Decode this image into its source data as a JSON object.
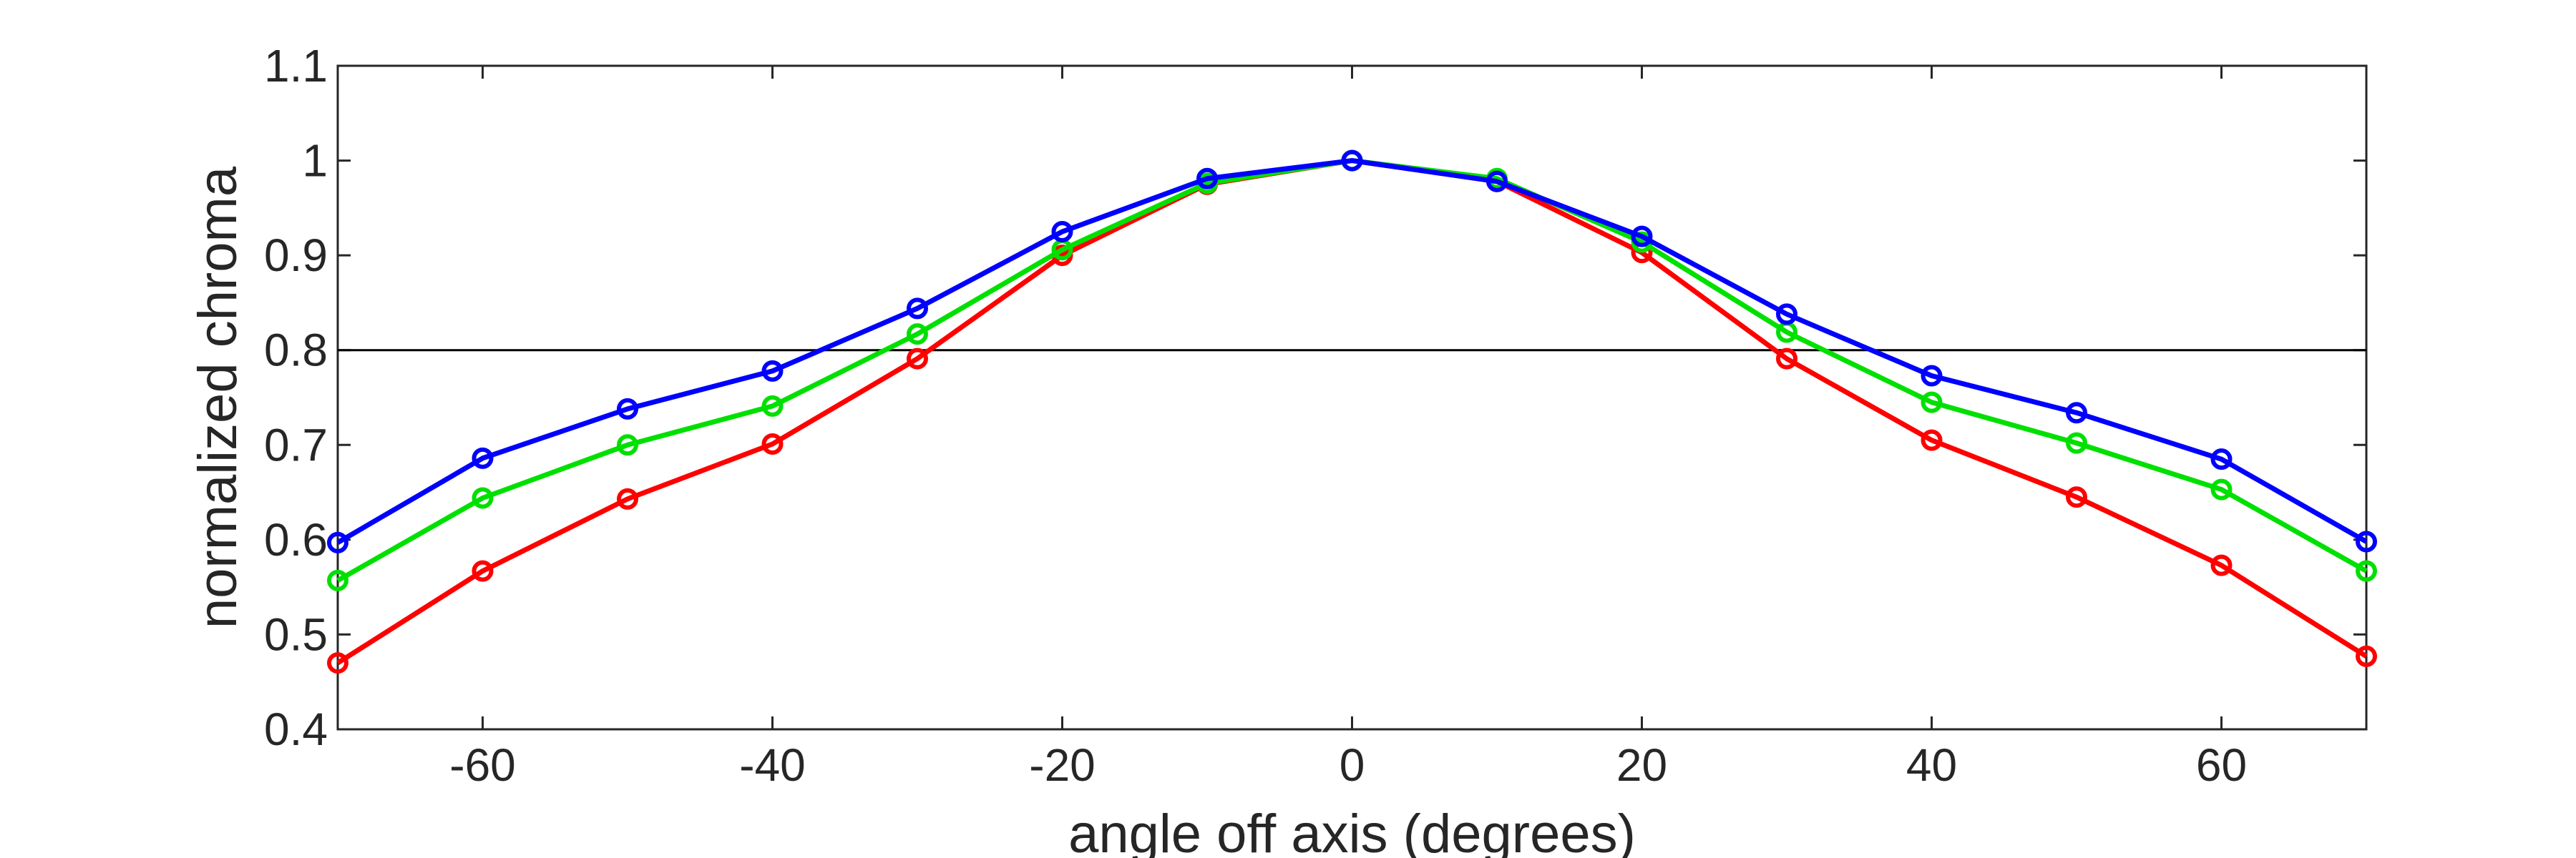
{
  "chart_data": {
    "type": "line",
    "title": "",
    "xlabel": "angle off axis (degrees)",
    "ylabel": "normalized chroma",
    "xlim": [
      -70,
      70
    ],
    "ylim": [
      0.4,
      1.1
    ],
    "x_ticks": [
      -60,
      -40,
      -20,
      0,
      20,
      40,
      60
    ],
    "x_tick_labels": [
      "-60",
      "-40",
      "-20",
      "0",
      "20",
      "40",
      "60"
    ],
    "y_ticks": [
      0.4,
      0.5,
      0.6,
      0.7,
      0.8,
      0.9,
      1.0,
      1.1
    ],
    "y_tick_labels": [
      "0.4",
      "0.5",
      "0.6",
      "0.7",
      "0.8",
      "0.9",
      "1",
      "1.1"
    ],
    "grid": false,
    "legend": "none",
    "reference_line": {
      "y": 0.8,
      "color": "#000000"
    },
    "marker": "circle",
    "x": [
      -70,
      -60,
      -50,
      -40,
      -30,
      -20,
      -10,
      0,
      10,
      20,
      30,
      40,
      50,
      60,
      70
    ],
    "series": [
      {
        "color": "#ff0000",
        "values": [
          0.47,
          0.567,
          0.643,
          0.701,
          0.791,
          0.9,
          0.975,
          1.0,
          0.978,
          0.903,
          0.791,
          0.705,
          0.645,
          0.573,
          0.477
        ]
      },
      {
        "color": "#00e000",
        "values": [
          0.557,
          0.644,
          0.7,
          0.741,
          0.817,
          0.906,
          0.976,
          1.0,
          0.981,
          0.914,
          0.819,
          0.745,
          0.702,
          0.653,
          0.567
        ]
      },
      {
        "color": "#0000ff",
        "values": [
          0.597,
          0.686,
          0.738,
          0.778,
          0.844,
          0.925,
          0.981,
          1.0,
          0.978,
          0.92,
          0.838,
          0.773,
          0.734,
          0.685,
          0.598
        ]
      }
    ]
  }
}
